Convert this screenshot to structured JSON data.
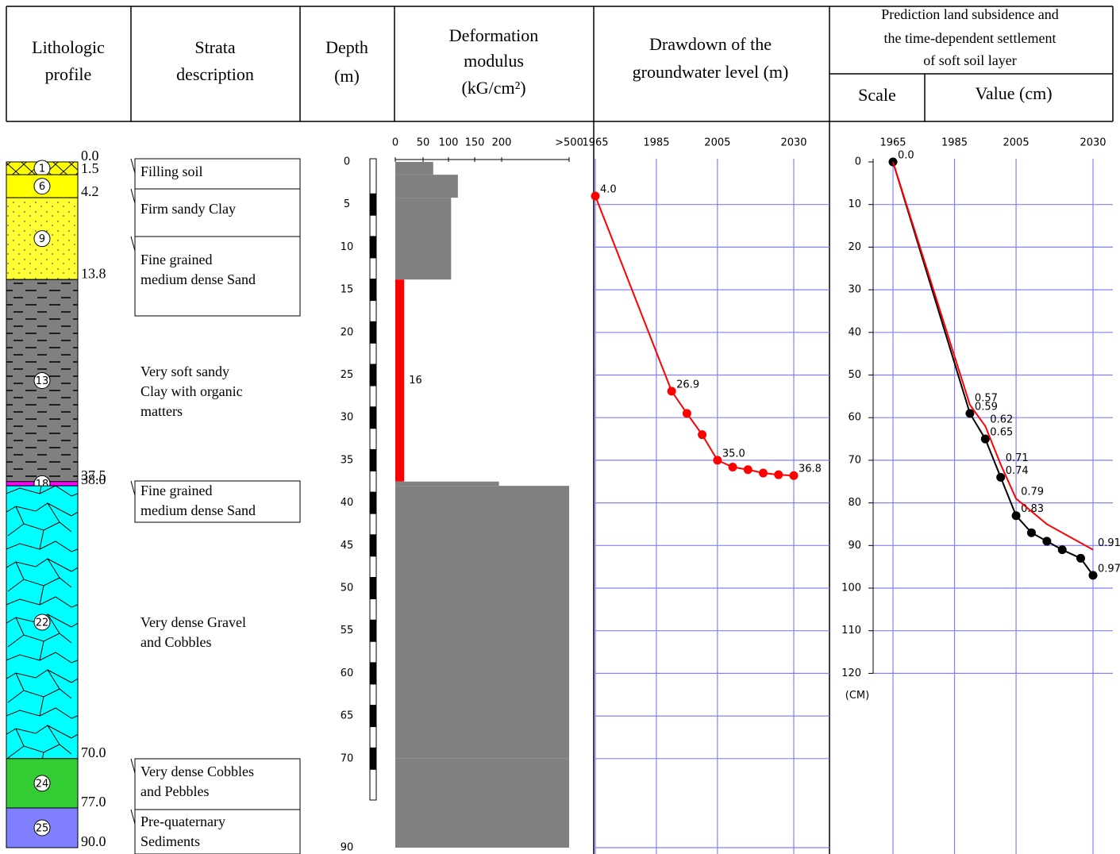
{
  "header": {
    "lithologic": [
      "Lithologic",
      "profile"
    ],
    "strata": [
      "Strata",
      "description"
    ],
    "depth": [
      "Depth",
      "(m)"
    ],
    "modulus": [
      "Deformation",
      "modulus",
      "(kG/cm²)"
    ],
    "drawdown": [
      "Drawdown of the",
      "groundwater level (m)"
    ],
    "prediction": [
      "Prediction land subsidence and",
      "the time-dependent settlement",
      "of soft soil layer"
    ],
    "scale": "Scale",
    "value": "Value (cm)"
  },
  "lithology": {
    "boundaries": [
      {
        "value": 0,
        "label": "0.0"
      },
      {
        "value": 1.5,
        "label": "1.5"
      },
      {
        "value": 4.2,
        "label": "4.2"
      },
      {
        "value": 13.8,
        "label": "13.8"
      },
      {
        "value": 37.5,
        "label": "37.5"
      },
      {
        "value": 38,
        "label": "38.0"
      },
      {
        "value": 70,
        "label": "70.0"
      },
      {
        "value": 77,
        "label": "77.0"
      },
      {
        "value": 90,
        "label": "90.0"
      }
    ],
    "layers": [
      {
        "id": "1",
        "color": "#ffff00",
        "pattern": "cross"
      },
      {
        "id": "6",
        "color": "#ffff00",
        "pattern": "plain"
      },
      {
        "id": "9",
        "color": "#ffff33",
        "pattern": "dots"
      },
      {
        "id": "13",
        "color": "#808080",
        "pattern": "dash"
      },
      {
        "id": "18",
        "color": "#ff00ff",
        "pattern": "plain"
      },
      {
        "id": "22",
        "color": "#00ffff",
        "pattern": "cobbles"
      },
      {
        "id": "24",
        "color": "#33cc33",
        "pattern": "plain"
      },
      {
        "id": "25",
        "color": "#8080ff",
        "pattern": "plain"
      }
    ]
  },
  "strata": [
    {
      "lines": [
        "Filling soil"
      ],
      "color": "#000000"
    },
    {
      "lines": [
        "Firm sandy Clay"
      ],
      "color": "#000000"
    },
    {
      "lines": [
        "Fine grained",
        "medium dense Sand"
      ],
      "color": "#000000"
    },
    {
      "lines": [
        "Very soft sandy",
        "Clay with organic",
        "matters"
      ],
      "color": "#ff0000"
    },
    {
      "lines": [
        "Fine grained",
        "medium dense Sand"
      ],
      "color": "#000000"
    },
    {
      "lines": [
        "Very dense Gravel",
        "and Cobbles"
      ],
      "color": "#000000"
    },
    {
      "lines": [
        "Very dense Cobbles",
        "and Pebbles"
      ],
      "color": "#000000"
    },
    {
      "lines": [
        "Pre-quaternary",
        "Sediments"
      ],
      "color": "#000000"
    }
  ],
  "depth_ticks": [
    0,
    5,
    10,
    15,
    20,
    25,
    30,
    35,
    40,
    45,
    50,
    55,
    60,
    65,
    70,
    90
  ],
  "modulus": {
    "xticks": [
      0,
      50,
      100,
      150,
      200,
      {
        "value": 500,
        "label": ">500"
      }
    ],
    "values": [
      70,
      118,
      105,
      16,
      195,
      500,
      500,
      500
    ],
    "value_labels": [
      null,
      null,
      null,
      "16",
      null,
      null,
      null,
      null
    ],
    "colors": [
      "#808080",
      "#808080",
      "#808080",
      "#ff0000",
      "#808080",
      "#808080",
      "#808080",
      "#808080"
    ]
  },
  "drawdown": {
    "xlim": [
      1965,
      2030
    ],
    "xticks": [
      1965,
      1985,
      2005,
      2030
    ],
    "color": "#ff0000",
    "x": [
      1965,
      1990,
      1995,
      2000,
      2005,
      2010,
      2015,
      2020,
      2025,
      2030
    ],
    "values": [
      4.0,
      26.9,
      29.5,
      32,
      35.0,
      35.8,
      36.1,
      36.5,
      36.7,
      36.8
    ],
    "value_labels": [
      "4.0",
      "26.9",
      null,
      null,
      "35.0",
      null,
      null,
      null,
      null,
      "36.8"
    ]
  },
  "subsidence": {
    "xlim": [
      1965,
      2030
    ],
    "xticks": [
      1965,
      1985,
      2005,
      2030
    ],
    "ylim": [
      0,
      120
    ],
    "yticks": [
      0,
      10,
      20,
      30,
      40,
      50,
      60,
      70,
      80,
      90,
      100,
      110,
      120
    ],
    "y_unit": "(CM)",
    "series": [
      {
        "color": "#000000",
        "markers": true,
        "x": [
          1965,
          1990,
          1995,
          2000,
          2005,
          2010,
          2015,
          2020,
          2026,
          2030
        ],
        "values": [
          0,
          59,
          65,
          74,
          83,
          87,
          89,
          91,
          93,
          97
        ],
        "value_labels": [
          "0.0",
          "0.59",
          "0.65",
          "0.74",
          "0.83",
          null,
          null,
          null,
          null,
          "0.97"
        ]
      },
      {
        "color": "#ff0000",
        "markers": false,
        "x": [
          1965,
          1990,
          1995,
          2000,
          2005,
          2015,
          2030
        ],
        "values": [
          0,
          57,
          62,
          71,
          79,
          85,
          91
        ],
        "value_labels": [
          null,
          "0.57",
          "0.62",
          "0.71",
          "0.79",
          null,
          "0.91"
        ]
      }
    ]
  }
}
